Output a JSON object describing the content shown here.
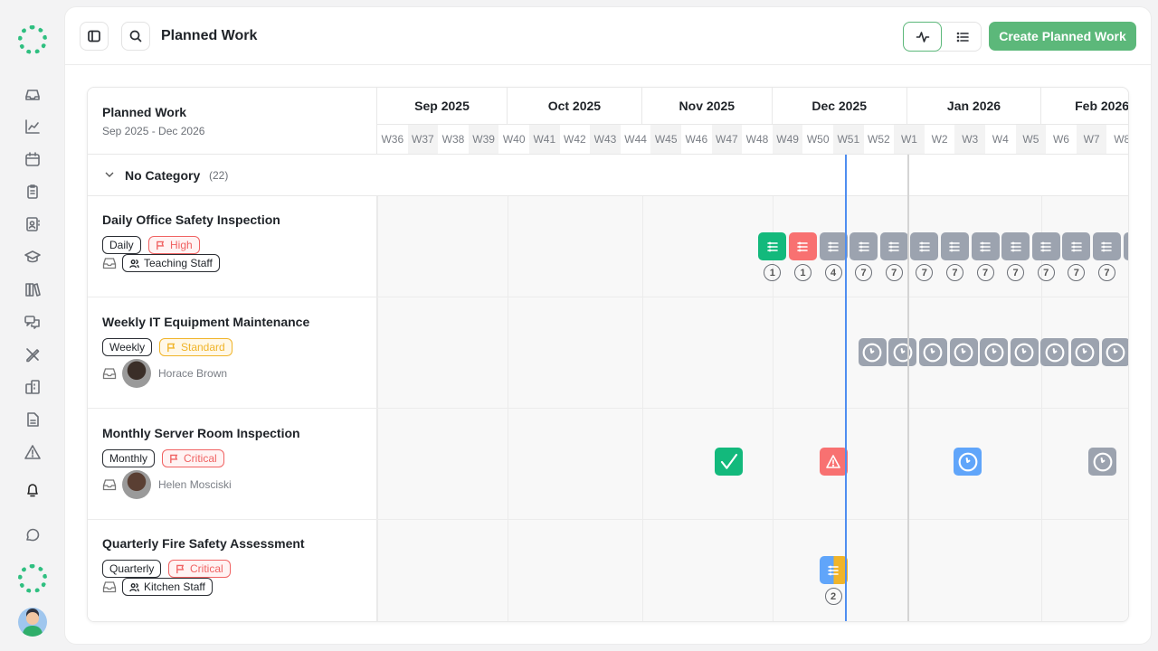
{
  "colors": {
    "accent": "#5cb87a",
    "today_line": "#4f8ef0",
    "completed": "#13b97c",
    "overdue": "#f87171",
    "scheduled": "#9ca3af",
    "upcoming": "#60a5fa",
    "standard": "#f0b429",
    "high": "#f06262",
    "critical": "#f06262"
  },
  "sidebar": {
    "items": [
      "inbox-icon",
      "chart-line-icon",
      "calendar-icon",
      "clipboard-icon",
      "contacts-icon",
      "graduation-cap-icon",
      "books-icon",
      "chat-bubbles-icon",
      "pencil-ruler-icon",
      "building-icon",
      "document-icon",
      "warning-icon",
      "bell-icon",
      "message-icon"
    ]
  },
  "header": {
    "title": "Planned Work",
    "create_label": "Create Planned Work"
  },
  "gantt": {
    "title": "Planned Work",
    "range": "Sep 2025 - Dec 2026",
    "months": [
      {
        "label": "Sep 2025",
        "start": "2025-09-01",
        "end": "2025-10-01"
      },
      {
        "label": "Oct 2025",
        "start": "2025-10-01",
        "end": "2025-11-01"
      },
      {
        "label": "Nov 2025",
        "start": "2025-11-01",
        "end": "2025-12-01"
      },
      {
        "label": "Dec 2025",
        "start": "2025-12-01",
        "end": "2026-01-01"
      },
      {
        "label": "Jan 2026",
        "start": "2026-01-01",
        "end": "2026-02-01"
      },
      {
        "label": "Feb 2026",
        "start": "2026-02-01",
        "end": "2026-03-01"
      }
    ],
    "weeks": [
      "W36",
      "W37",
      "W38",
      "W39",
      "W40",
      "W41",
      "W42",
      "W43",
      "W44",
      "W45",
      "W46",
      "W47",
      "W48",
      "W49",
      "W50",
      "W51",
      "W52",
      "W1",
      "W2",
      "W3",
      "W4",
      "W5",
      "W6",
      "W7",
      "W8"
    ],
    "timeline_start": "2025-09-01",
    "today": "2025-12-18",
    "category": {
      "label": "No Category",
      "count": "(22)"
    },
    "rows": [
      {
        "title": "Daily Office Safety Inspection",
        "frequency": "Daily",
        "priority": "High",
        "priority_level": "high",
        "assignee_type": "team",
        "assignee": "Teaching Staff",
        "items": [
          {
            "date": "2025-12-01",
            "status": "completed",
            "icon": "list",
            "count": "1"
          },
          {
            "date": "2025-12-08",
            "status": "overdue",
            "icon": "list",
            "count": "1"
          },
          {
            "date": "2025-12-15",
            "status": "scheduled",
            "icon": "list",
            "count": "4"
          },
          {
            "date": "2025-12-22",
            "status": "scheduled",
            "icon": "list",
            "count": "7"
          },
          {
            "date": "2025-12-29",
            "status": "scheduled",
            "icon": "list",
            "count": "7"
          },
          {
            "date": "2026-01-05",
            "status": "scheduled",
            "icon": "list",
            "count": "7"
          },
          {
            "date": "2026-01-12",
            "status": "scheduled",
            "icon": "list",
            "count": "7"
          },
          {
            "date": "2026-01-19",
            "status": "scheduled",
            "icon": "list",
            "count": "7"
          },
          {
            "date": "2026-01-26",
            "status": "scheduled",
            "icon": "list",
            "count": "7"
          },
          {
            "date": "2026-02-02",
            "status": "scheduled",
            "icon": "list",
            "count": "7"
          },
          {
            "date": "2026-02-09",
            "status": "scheduled",
            "icon": "list",
            "count": "7"
          },
          {
            "date": "2026-02-16",
            "status": "scheduled",
            "icon": "list",
            "count": "7"
          },
          {
            "date": "2026-02-23",
            "status": "scheduled",
            "icon": "list",
            "count": ""
          }
        ]
      },
      {
        "title": "Weekly IT Equipment Maintenance",
        "frequency": "Weekly",
        "priority": "Standard",
        "priority_level": "standard",
        "assignee_type": "person",
        "assignee": "Horace Brown",
        "items": [
          {
            "date": "2025-12-24",
            "status": "scheduled",
            "icon": "clock"
          },
          {
            "date": "2025-12-31",
            "status": "scheduled",
            "icon": "clock"
          },
          {
            "date": "2026-01-07",
            "status": "scheduled",
            "icon": "clock"
          },
          {
            "date": "2026-01-14",
            "status": "scheduled",
            "icon": "clock"
          },
          {
            "date": "2026-01-21",
            "status": "scheduled",
            "icon": "clock"
          },
          {
            "date": "2026-01-28",
            "status": "scheduled",
            "icon": "clock"
          },
          {
            "date": "2026-02-04",
            "status": "scheduled",
            "icon": "clock"
          },
          {
            "date": "2026-02-11",
            "status": "scheduled",
            "icon": "clock"
          },
          {
            "date": "2026-02-18",
            "status": "scheduled",
            "icon": "clock"
          }
        ]
      },
      {
        "title": "Monthly Server Room Inspection",
        "frequency": "Monthly",
        "priority": "Critical",
        "priority_level": "critical",
        "assignee_type": "person",
        "assignee": "Helen Mosciski",
        "items": [
          {
            "date": "2025-11-21",
            "status": "completed",
            "icon": "check"
          },
          {
            "date": "2025-12-15",
            "status": "overdue",
            "icon": "warning"
          },
          {
            "date": "2026-01-15",
            "status": "upcoming",
            "icon": "clock"
          },
          {
            "date": "2026-02-15",
            "status": "scheduled",
            "icon": "clock"
          }
        ]
      },
      {
        "title": "Quarterly Fire Safety Assessment",
        "frequency": "Quarterly",
        "priority": "Critical",
        "priority_level": "critical",
        "assignee_type": "team",
        "assignee": "Kitchen Staff",
        "items": [
          {
            "date": "2025-12-15",
            "status": "split",
            "icon": "list",
            "count": "2"
          }
        ]
      }
    ]
  }
}
